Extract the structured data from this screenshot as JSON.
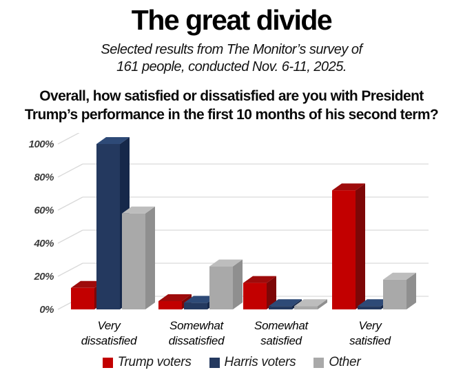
{
  "header": {
    "title": "The great divide",
    "subtitle_line1": "Selected results from The Monitor’s survey of",
    "subtitle_line2": "161 people, conducted Nov. 6-11, 2025."
  },
  "question": {
    "line1": "Overall, how satisfied or dissatisfied are you with President",
    "line2": "Trump’s performance in the first 10 months of his second term?"
  },
  "chart_data": {
    "type": "bar",
    "variant": "3d-grouped-column",
    "title": "The great divide",
    "categories": [
      "Very\ndissatisfied",
      "Somewhat\ndissatisfied",
      "Somewhat\nsatisfied",
      "Very\nsatisfied"
    ],
    "series": [
      {
        "name": "Trump voters",
        "values": [
          13,
          5,
          16,
          72
        ],
        "color": "#c20000",
        "top": "#9e0b0b",
        "side": "#7d0707"
      },
      {
        "name": "Harris voters",
        "values": [
          100,
          4,
          2,
          2
        ],
        "color": "#24395f",
        "top": "#2e4a77",
        "side": "#16284a"
      },
      {
        "name": "Other",
        "values": [
          58,
          26,
          2,
          18
        ],
        "color": "#a9a9a9",
        "top": "#bdbdbd",
        "side": "#8f8f8f"
      }
    ],
    "ylabel": "",
    "xlabel": "",
    "ylim": [
      0,
      100
    ],
    "ytick_values": [
      0,
      20,
      40,
      60,
      80,
      100
    ],
    "yticks": [
      "0%",
      "20%",
      "40%",
      "60%",
      "80%",
      "100%"
    ],
    "grid": true,
    "gridline_color": "#d9d9d9",
    "legend_position": "bottom"
  }
}
